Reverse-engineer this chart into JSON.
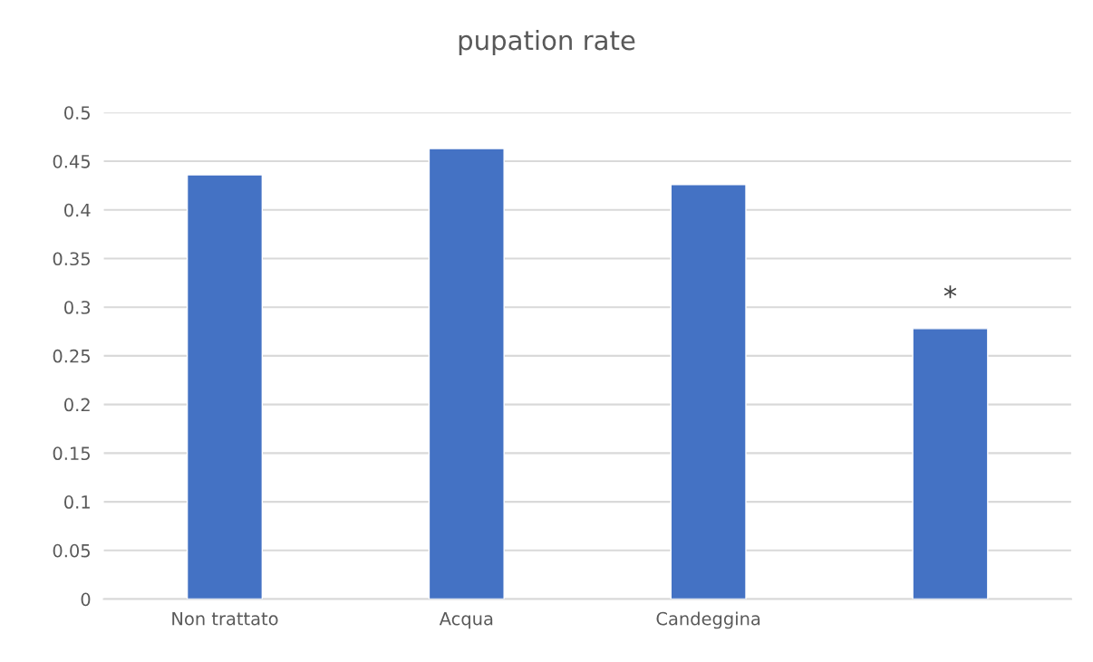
{
  "chart_data": {
    "type": "bar",
    "title": "pupation rate",
    "categories": [
      "Non trattato",
      "Acqua",
      "Candeggina",
      null
    ],
    "values": [
      0.436,
      0.463,
      0.426,
      0.278
    ],
    "color": "#4472c4",
    "ylim": [
      0,
      0.5
    ],
    "yticks": [
      0,
      0.05,
      0.1,
      0.15,
      0.2,
      0.25,
      0.3,
      0.35,
      0.4,
      0.45,
      0.5
    ],
    "grid": "y",
    "legend": false,
    "annotations": [
      "*"
    ]
  }
}
